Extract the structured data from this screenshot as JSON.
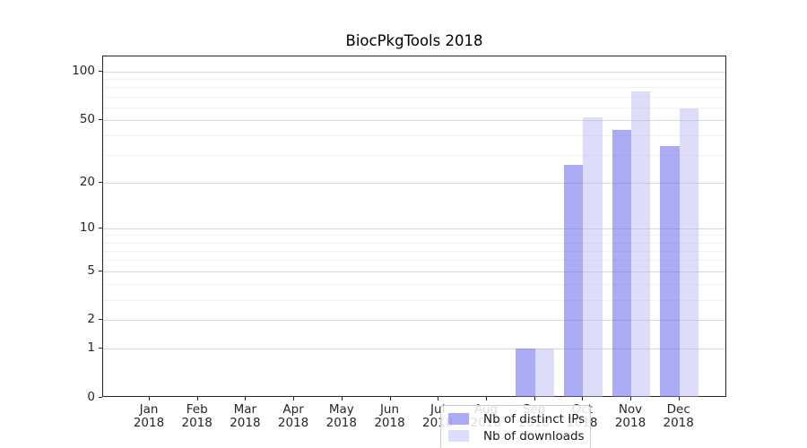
{
  "figure": {
    "title": "BiocPkgTools 2018"
  },
  "colors": {
    "bar_distinct_ips": "rgba(102,102,238,0.55)",
    "bar_downloads": "rgba(180,180,245,0.45)",
    "grid_major": "#d9d9d9",
    "grid_minor": "#f2f2f2",
    "axis": "#262626",
    "legend_border": "#cccccc",
    "text": "#262626"
  },
  "chart_data": {
    "type": "bar",
    "title": "BiocPkgTools 2018",
    "categories": [
      "Jan 2018",
      "Feb 2018",
      "Mar 2018",
      "Apr 2018",
      "May 2018",
      "Jun 2018",
      "Jul 2018",
      "Aug 2018",
      "Sep 2018",
      "Oct 2018",
      "Nov 2018",
      "Dec 2018"
    ],
    "series": [
      {
        "name": "Nb of distinct IPs",
        "color": "rgba(102,102,238,0.55)",
        "values": [
          0,
          0,
          0,
          0,
          0,
          0,
          0,
          0,
          1,
          26,
          43,
          34
        ]
      },
      {
        "name": "Nb of downloads",
        "color": "rgba(180,180,245,0.45)",
        "values": [
          0,
          0,
          0,
          0,
          0,
          0,
          0,
          0,
          1,
          52,
          75,
          59
        ]
      }
    ],
    "yscale": "log1p",
    "ylim": [
      0,
      124
    ],
    "y_major_ticks": [
      0,
      1,
      2,
      5,
      10,
      20,
      50,
      100
    ],
    "y_minor_ticks": [
      3,
      4,
      6,
      7,
      8,
      9,
      30,
      40,
      60,
      70,
      80,
      90
    ],
    "xlabel": "",
    "ylabel": "",
    "grid": true,
    "legend_position": "lower center"
  }
}
